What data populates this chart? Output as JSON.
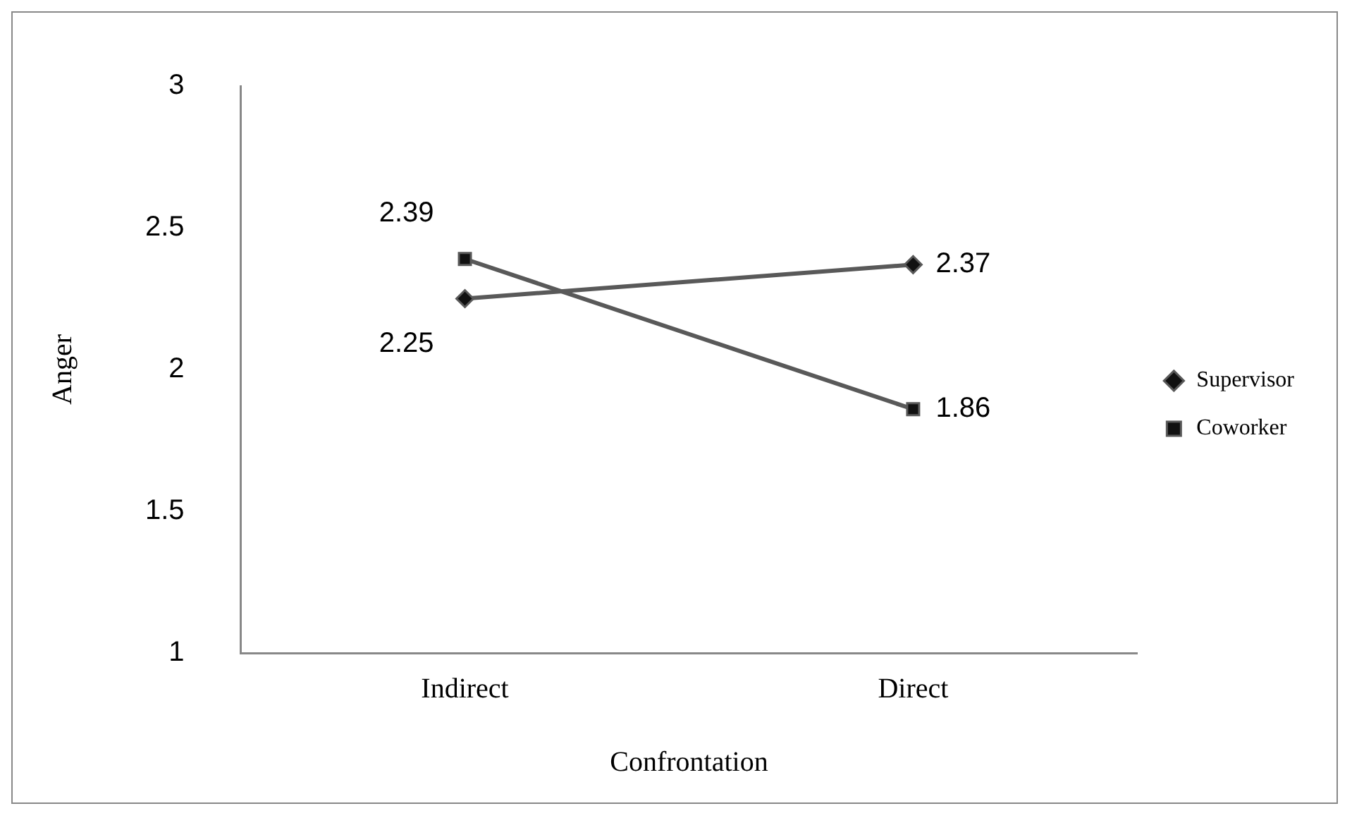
{
  "chart_data": {
    "type": "line",
    "xlabel": "Confrontation",
    "ylabel": "Anger",
    "categories": [
      "Indirect",
      "Direct"
    ],
    "series": [
      {
        "name": "Supervisor",
        "color": "#595959",
        "values": [
          2.25,
          2.37
        ],
        "marker": "diamond"
      },
      {
        "name": "Coworker",
        "color": "#595959",
        "values": [
          2.39,
          1.86
        ],
        "marker": "square"
      }
    ],
    "ylim": [
      1,
      3
    ],
    "yticks": [
      1,
      1.5,
      2,
      2.5,
      3
    ],
    "grid": false,
    "legend": "right",
    "data_labels": true
  }
}
